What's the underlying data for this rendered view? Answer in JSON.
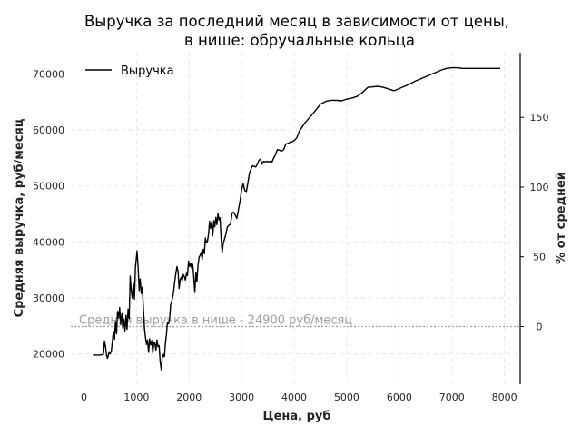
{
  "chart_data": {
    "type": "line",
    "title": [
      "Выручка за последний месяц в зависимости от цены,",
      "в нише: обручальные кольца"
    ],
    "xlabel": "Цена, руб",
    "ylabel": "Средняя выручка, руб/месяц",
    "y2label": "% от средней",
    "xlim": [
      -250,
      8300
    ],
    "ylim": [
      14600,
      73800
    ],
    "x_ticks": [
      "0",
      "1000",
      "2000",
      "3000",
      "4000",
      "5000",
      "6000",
      "7000",
      "8000"
    ],
    "y_ticks": [
      "20000",
      "30000",
      "40000",
      "50000",
      "60000",
      "70000"
    ],
    "y2_ticks": [
      "0",
      "50",
      "100",
      "150"
    ],
    "grid": true,
    "legend_position": "top-left",
    "colors": {
      "line": "#000000",
      "reference": "#a0a0a0",
      "grid": "#e0e0e0"
    },
    "reference_line": {
      "y": 24900,
      "label": "Средняя выручка в нише - 24900 руб/месяц"
    },
    "series": [
      {
        "name": "Выручка",
        "points": [
          [
            170,
            19800
          ],
          [
            300,
            19800
          ],
          [
            370,
            19900
          ],
          [
            390,
            22300
          ],
          [
            410,
            21400
          ],
          [
            430,
            19700
          ],
          [
            450,
            19200
          ],
          [
            480,
            20400
          ],
          [
            500,
            20000
          ],
          [
            520,
            20500
          ],
          [
            540,
            22100
          ],
          [
            560,
            24000
          ],
          [
            580,
            22600
          ],
          [
            600,
            25800
          ],
          [
            620,
            23600
          ],
          [
            640,
            27600
          ],
          [
            660,
            26400
          ],
          [
            680,
            28300
          ],
          [
            700,
            25200
          ],
          [
            720,
            27200
          ],
          [
            740,
            24600
          ],
          [
            760,
            26200
          ],
          [
            780,
            24100
          ],
          [
            800,
            26900
          ],
          [
            820,
            24400
          ],
          [
            840,
            28000
          ],
          [
            860,
            26300
          ],
          [
            880,
            33900
          ],
          [
            900,
            31300
          ],
          [
            920,
            30000
          ],
          [
            940,
            32600
          ],
          [
            960,
            29800
          ],
          [
            980,
            35600
          ],
          [
            1000,
            37400
          ],
          [
            1010,
            38400
          ],
          [
            1030,
            35600
          ],
          [
            1050,
            31300
          ],
          [
            1070,
            33400
          ],
          [
            1090,
            30800
          ],
          [
            1110,
            31900
          ],
          [
            1130,
            28300
          ],
          [
            1150,
            24600
          ],
          [
            1170,
            23000
          ],
          [
            1190,
            21700
          ],
          [
            1210,
            22500
          ],
          [
            1230,
            20300
          ],
          [
            1250,
            22700
          ],
          [
            1270,
            21600
          ],
          [
            1290,
            22400
          ],
          [
            1310,
            20200
          ],
          [
            1330,
            22100
          ],
          [
            1350,
            21900
          ],
          [
            1370,
            20700
          ],
          [
            1390,
            22500
          ],
          [
            1410,
            21300
          ],
          [
            1430,
            21500
          ],
          [
            1450,
            18700
          ],
          [
            1470,
            17200
          ],
          [
            1490,
            19300
          ],
          [
            1510,
            19900
          ],
          [
            1530,
            19500
          ],
          [
            1550,
            21900
          ],
          [
            1570,
            23600
          ],
          [
            1590,
            25700
          ],
          [
            1610,
            25400
          ],
          [
            1630,
            26200
          ],
          [
            1650,
            28800
          ],
          [
            1670,
            29400
          ],
          [
            1700,
            30700
          ],
          [
            1730,
            33100
          ],
          [
            1750,
            34500
          ],
          [
            1770,
            35600
          ],
          [
            1790,
            34800
          ],
          [
            1810,
            31700
          ],
          [
            1830,
            33200
          ],
          [
            1850,
            33700
          ],
          [
            1870,
            33100
          ],
          [
            1890,
            34200
          ],
          [
            1910,
            33800
          ],
          [
            1930,
            33200
          ],
          [
            1950,
            34400
          ],
          [
            1970,
            34000
          ],
          [
            1990,
            36600
          ],
          [
            2010,
            35600
          ],
          [
            2030,
            36200
          ],
          [
            2050,
            35300
          ],
          [
            2070,
            36000
          ],
          [
            2090,
            33600
          ],
          [
            2110,
            31000
          ],
          [
            2130,
            34500
          ],
          [
            2150,
            32900
          ],
          [
            2170,
            35800
          ],
          [
            2190,
            37300
          ],
          [
            2210,
            37600
          ],
          [
            2230,
            38200
          ],
          [
            2250,
            36900
          ],
          [
            2270,
            38700
          ],
          [
            2290,
            37900
          ],
          [
            2310,
            40700
          ],
          [
            2330,
            39900
          ],
          [
            2350,
            40100
          ],
          [
            2370,
            41400
          ],
          [
            2390,
            43700
          ],
          [
            2410,
            42400
          ],
          [
            2430,
            43600
          ],
          [
            2450,
            41100
          ],
          [
            2470,
            43800
          ],
          [
            2490,
            42700
          ],
          [
            2510,
            44400
          ],
          [
            2530,
            43100
          ],
          [
            2550,
            45100
          ],
          [
            2570,
            43900
          ],
          [
            2590,
            44300
          ],
          [
            2610,
            40600
          ],
          [
            2630,
            38100
          ],
          [
            2650,
            39700
          ],
          [
            2670,
            40400
          ],
          [
            2700,
            41400
          ],
          [
            2730,
            42700
          ],
          [
            2760,
            43000
          ],
          [
            2790,
            43200
          ],
          [
            2820,
            45200
          ],
          [
            2850,
            45300
          ],
          [
            2880,
            44800
          ],
          [
            2910,
            44200
          ],
          [
            2940,
            45800
          ],
          [
            2970,
            47300
          ],
          [
            3000,
            49400
          ],
          [
            3030,
            50400
          ],
          [
            3060,
            49200
          ],
          [
            3090,
            49000
          ],
          [
            3120,
            50600
          ],
          [
            3150,
            52300
          ],
          [
            3180,
            53100
          ],
          [
            3210,
            53600
          ],
          [
            3240,
            53500
          ],
          [
            3270,
            53400
          ],
          [
            3300,
            53900
          ],
          [
            3330,
            54600
          ],
          [
            3360,
            54800
          ],
          [
            3390,
            53900
          ],
          [
            3420,
            54400
          ],
          [
            3450,
            54300
          ],
          [
            3480,
            54400
          ],
          [
            3510,
            54300
          ],
          [
            3540,
            54400
          ],
          [
            3570,
            54100
          ],
          [
            3600,
            54800
          ],
          [
            3640,
            55500
          ],
          [
            3680,
            56500
          ],
          [
            3720,
            56400
          ],
          [
            3760,
            56200
          ],
          [
            3800,
            56500
          ],
          [
            3840,
            57500
          ],
          [
            3880,
            57600
          ],
          [
            3920,
            57800
          ],
          [
            3960,
            57900
          ],
          [
            4000,
            58100
          ],
          [
            4050,
            58600
          ],
          [
            4100,
            59800
          ],
          [
            4200,
            61200
          ],
          [
            4300,
            62300
          ],
          [
            4400,
            63400
          ],
          [
            4500,
            64600
          ],
          [
            4600,
            65100
          ],
          [
            4700,
            65300
          ],
          [
            4800,
            65300
          ],
          [
            4900,
            65200
          ],
          [
            5000,
            65500
          ],
          [
            5100,
            65700
          ],
          [
            5200,
            66000
          ],
          [
            5300,
            66700
          ],
          [
            5400,
            67600
          ],
          [
            5500,
            67700
          ],
          [
            5600,
            67800
          ],
          [
            5700,
            67600
          ],
          [
            5800,
            67300
          ],
          [
            5900,
            67000
          ],
          [
            6000,
            67400
          ],
          [
            6100,
            67800
          ],
          [
            6200,
            68200
          ],
          [
            6300,
            68700
          ],
          [
            6400,
            69100
          ],
          [
            6500,
            69500
          ],
          [
            6600,
            69900
          ],
          [
            6700,
            70300
          ],
          [
            6800,
            70700
          ],
          [
            6900,
            71000
          ],
          [
            7000,
            71100
          ],
          [
            7100,
            71100
          ],
          [
            7200,
            71000
          ],
          [
            7300,
            71000
          ],
          [
            7400,
            71000
          ],
          [
            7500,
            71000
          ],
          [
            7600,
            71000
          ],
          [
            7700,
            71000
          ],
          [
            7800,
            71000
          ],
          [
            7920,
            71000
          ]
        ]
      }
    ]
  }
}
